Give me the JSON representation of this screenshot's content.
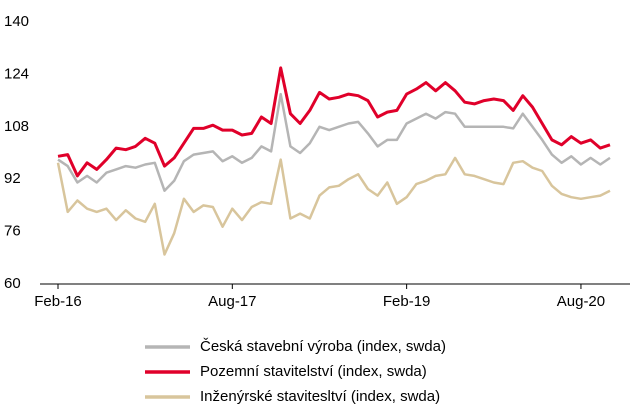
{
  "chart_data": {
    "type": "line",
    "categories": [
      "Feb-16",
      null,
      null,
      null,
      null,
      null,
      null,
      null,
      null,
      null,
      null,
      null,
      null,
      null,
      null,
      null,
      null,
      null,
      "Aug-17",
      null,
      null,
      null,
      null,
      null,
      null,
      null,
      null,
      null,
      null,
      null,
      null,
      null,
      null,
      null,
      null,
      null,
      "Feb-19",
      null,
      null,
      null,
      null,
      null,
      null,
      null,
      null,
      null,
      null,
      null,
      null,
      null,
      null,
      null,
      null,
      null,
      "Aug-20",
      null,
      null,
      null
    ],
    "series": [
      {
        "name": "Česká stavební výroba (index, swda)",
        "color": "#b5b5b5",
        "values": [
          98,
          96,
          91,
          93,
          91,
          94,
          95,
          96,
          95.5,
          96.5,
          97,
          88.5,
          91.5,
          97.5,
          99.5,
          100,
          100.5,
          97.5,
          99,
          97,
          98.5,
          102,
          100.5,
          118,
          102,
          100,
          103,
          108,
          107,
          108,
          109,
          109.5,
          106,
          102,
          104,
          104,
          109,
          110.5,
          112,
          110.5,
          112.5,
          112,
          108,
          108,
          108,
          108,
          108,
          107.5,
          112,
          108,
          104,
          99.5,
          97,
          99,
          96.5,
          98.5,
          96.5,
          98.5
        ]
      },
      {
        "name": "Pozemní stavitelství (index, swda)",
        "color": "#e0002a",
        "values": [
          99,
          99.5,
          93,
          97,
          95,
          98,
          101.5,
          101,
          102,
          104.5,
          103,
          96,
          98.5,
          103,
          107.5,
          107.5,
          108.5,
          107,
          107,
          105.5,
          106,
          111,
          109,
          126,
          112,
          109,
          113,
          118.5,
          116.5,
          117,
          118,
          117.5,
          116,
          111,
          112.5,
          113,
          118,
          119.5,
          121.5,
          119,
          121.5,
          119,
          115.5,
          115,
          116,
          116.5,
          116,
          113,
          117.5,
          114,
          109,
          104,
          102.5,
          105,
          103,
          104,
          101.5,
          102.5
        ]
      },
      {
        "name": "Inženýrské stavitesltví (index, swda)",
        "color": "#d8c59c",
        "values": [
          97,
          82,
          85.5,
          83,
          82,
          83,
          79.5,
          82.5,
          80,
          79,
          84.5,
          69,
          75.5,
          86,
          82,
          84,
          83.5,
          77.5,
          83,
          79.5,
          83.5,
          85,
          84.5,
          98,
          80,
          81.5,
          80,
          87,
          89.5,
          90,
          92,
          93.5,
          89,
          87,
          91,
          84.5,
          86.5,
          90.5,
          91.5,
          93,
          93.5,
          98.5,
          93.5,
          93,
          92,
          91,
          90.5,
          97,
          97.5,
          95.5,
          94.5,
          90,
          87.5,
          86.5,
          86,
          86.5,
          87,
          88.5
        ]
      }
    ],
    "ylim": [
      60,
      140
    ],
    "yticks": [
      60,
      76,
      92,
      108,
      124,
      140
    ],
    "grid": false
  }
}
